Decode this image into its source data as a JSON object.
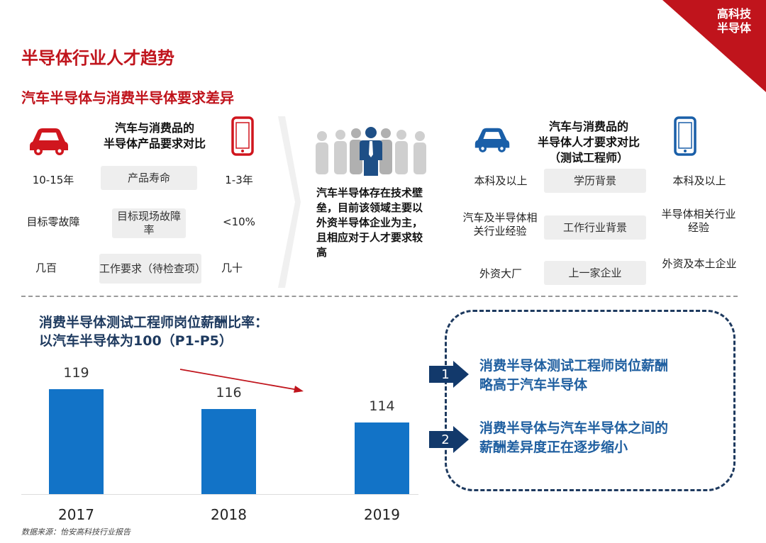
{
  "corner_badge": {
    "line1": "高科技",
    "line2": "半导体",
    "color": "#c0141c"
  },
  "page_title": "半导体行业人才趋势",
  "section_title": "汽车半导体与消费半导体要求差异",
  "left_table": {
    "heading_line1": "汽车与消费品的",
    "heading_line2": "半导体产品要求对比",
    "rows": [
      {
        "auto": "10-15年",
        "criterion": "产品寿命",
        "consumer": "1-3年"
      },
      {
        "auto": "目标零故障",
        "criterion": "目标现场故障率",
        "consumer": "<10%"
      },
      {
        "auto": "几百",
        "criterion": "工作要求（待检查项）",
        "consumer": "几十"
      }
    ]
  },
  "center_note": "汽车半导体存在技术壁垒，目前该领域主要以外资半导体企业为主，且相应对于人才要求较高",
  "right_table": {
    "heading_line1": "汽车与消费品的",
    "heading_line2": "半导体人才要求对比",
    "heading_line3": "（测试工程师）",
    "rows": [
      {
        "auto": "本科及以上",
        "criterion": "学历背景",
        "consumer": "本科及以上"
      },
      {
        "auto": "汽车及半导体相关行业经验",
        "criterion": "工作行业背景",
        "consumer": "半导体相关行业经验"
      },
      {
        "auto": "外资大厂",
        "criterion": "上一家企业",
        "consumer": "外资及本土企业"
      }
    ]
  },
  "salary_title_line1": "消费半导体测试工程师岗位薪酬比率：",
  "salary_title_line2": "以汽车半导体为100（P1-P5）",
  "chart_data": {
    "type": "bar",
    "categories": [
      "2017",
      "2018",
      "2019"
    ],
    "values": [
      119,
      116,
      114
    ],
    "bar_color": "#1273c7",
    "trend_arrow_color": "#c0141c"
  },
  "conclusions": [
    {
      "num": "1",
      "line1": "消费半导体测试工程师岗位薪酬",
      "line2": "略高于汽车半导体"
    },
    {
      "num": "2",
      "line1": "消费半导体与汽车半导体之间的",
      "line2": "薪酬差异度正在逐步缩小"
    }
  ],
  "source": "数据来源：怡安高科技行业报告",
  "icons": {
    "car": "car-icon",
    "phone": "phone-icon",
    "people": "people-icon"
  }
}
